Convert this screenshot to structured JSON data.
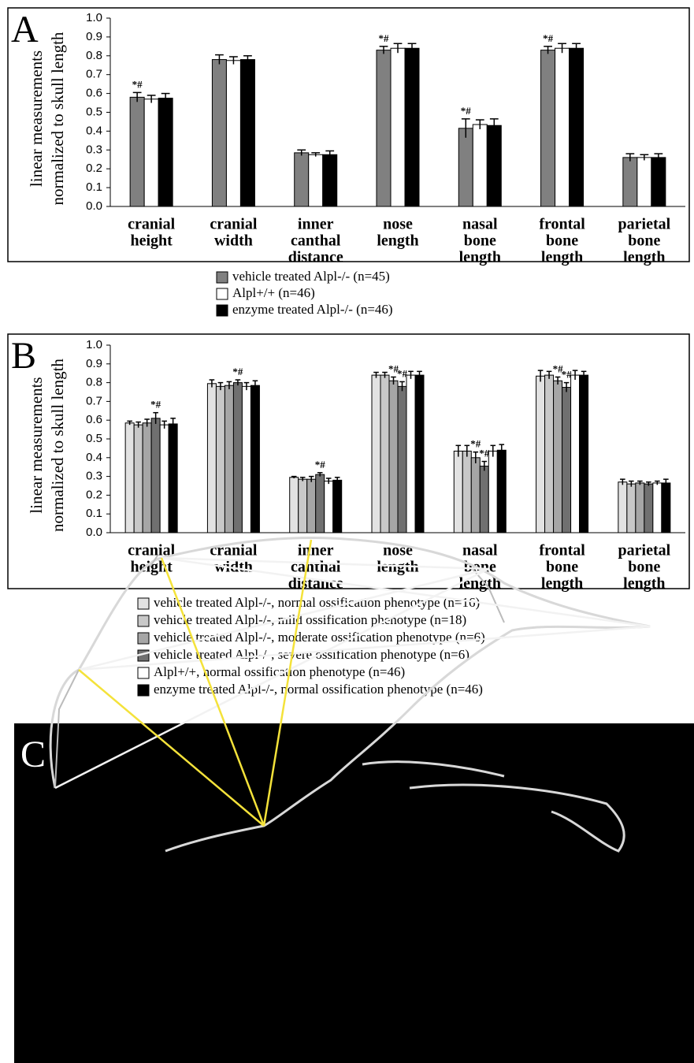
{
  "chart_data": [
    {
      "type": "bar",
      "panel_label": "A",
      "ylabel": [
        "linear measurements",
        "normalized to skull length"
      ],
      "categories": [
        [
          "cranial",
          "height"
        ],
        [
          "cranial",
          "width"
        ],
        [
          "inner",
          "canthal",
          "distance"
        ],
        [
          "nose",
          "length"
        ],
        [
          "nasal",
          "bone",
          "length"
        ],
        [
          "frontal",
          "bone",
          "length"
        ],
        [
          "parietal",
          "bone",
          "length"
        ]
      ],
      "ylim": [
        0,
        1
      ],
      "yticks": [
        {
          "value": 0,
          "label": "0.0"
        },
        0.1,
        0.2,
        0.3,
        0.4,
        0.5,
        0.6,
        0.7,
        0.8,
        0.9,
        {
          "value": 1,
          "label": "1.0"
        }
      ],
      "series": [
        {
          "name": "vehicle treated Alpl-/- (n=45)",
          "color": "#808080",
          "values": [
            0.58,
            0.78,
            0.285,
            0.83,
            0.415,
            0.83,
            0.26
          ],
          "errors": [
            0.025,
            0.025,
            0.015,
            0.02,
            0.05,
            0.02,
            0.02
          ],
          "annotations": [
            "*#",
            null,
            null,
            "*#",
            "*#",
            "*#",
            null
          ]
        },
        {
          "name": "Alpl+/+ (n=46)",
          "color": "#ffffff",
          "values": [
            0.57,
            0.775,
            0.275,
            0.84,
            0.435,
            0.84,
            0.26
          ],
          "errors": [
            0.02,
            0.02,
            0.01,
            0.025,
            0.025,
            0.025,
            0.015
          ]
        },
        {
          "name": "enzyme treated Alpl-/-  (n=46)",
          "color": "#000000",
          "values": [
            0.575,
            0.78,
            0.275,
            0.84,
            0.43,
            0.84,
            0.26
          ],
          "errors": [
            0.025,
            0.02,
            0.02,
            0.025,
            0.035,
            0.025,
            0.02
          ]
        }
      ]
    },
    {
      "type": "bar",
      "panel_label": "B",
      "ylabel": [
        "linear measurements",
        "normalized to skull length"
      ],
      "categories": [
        [
          "cranial",
          "height"
        ],
        [
          "cranial",
          "width"
        ],
        [
          "inner",
          "canthal",
          "distance"
        ],
        [
          "nose",
          "length"
        ],
        [
          "nasal",
          "bone",
          "length"
        ],
        [
          "frontal",
          "bone",
          "length"
        ],
        [
          "parietal",
          "bone",
          "length"
        ]
      ],
      "ylim": [
        0,
        1
      ],
      "yticks": [
        {
          "value": 0,
          "label": "0.0"
        },
        0.1,
        0.2,
        0.3,
        0.4,
        0.5,
        0.6,
        0.7,
        0.8,
        0.9,
        {
          "value": 1,
          "label": "1.0"
        }
      ],
      "series": [
        {
          "name": "vehicle treated Alpl-/-, normal ossification phenotype (n=16)",
          "color": "#e2e2e2",
          "values": [
            0.585,
            0.795,
            0.295,
            0.84,
            0.435,
            0.835,
            0.27
          ],
          "errors": [
            0.01,
            0.02,
            0.005,
            0.015,
            0.03,
            0.03,
            0.015
          ]
        },
        {
          "name": "vehicle treated Alpl-/-, mild ossification phenotype (n=18)",
          "color": "#c8c8c8",
          "values": [
            0.575,
            0.78,
            0.285,
            0.84,
            0.435,
            0.84,
            0.26
          ],
          "errors": [
            0.015,
            0.02,
            0.01,
            0.015,
            0.03,
            0.02,
            0.015
          ]
        },
        {
          "name": "vehicle treated Alpl-/-, moderate ossification phenotype (n=6)",
          "color": "#a6a6a6",
          "values": [
            0.585,
            0.785,
            0.285,
            0.81,
            0.4,
            0.81,
            0.265
          ],
          "errors": [
            0.02,
            0.02,
            0.015,
            0.02,
            0.03,
            0.02,
            0.01
          ],
          "annotations": [
            null,
            null,
            null,
            "*#",
            "*#",
            "*#",
            null
          ]
        },
        {
          "name": "vehicle treated Alpl-/-, severe ossification phenotype (n=6)",
          "color": "#707070",
          "values": [
            0.61,
            0.8,
            0.31,
            0.78,
            0.355,
            0.775,
            0.26
          ],
          "errors": [
            0.03,
            0.015,
            0.01,
            0.025,
            0.025,
            0.025,
            0.01
          ],
          "annotations": [
            "*#",
            "*#",
            "*#",
            "*#",
            "*#",
            "*#",
            null
          ]
        },
        {
          "name": "Alpl+/+, normal ossification phenotype (n=46)",
          "color": "#ffffff",
          "values": [
            0.575,
            0.78,
            0.275,
            0.84,
            0.435,
            0.84,
            0.265
          ],
          "errors": [
            0.02,
            0.02,
            0.015,
            0.02,
            0.03,
            0.025,
            0.01
          ]
        },
        {
          "name": "enzyme treated Alpl-/-, normal ossification phenotype (n=46)",
          "color": "#000000",
          "values": [
            0.58,
            0.785,
            0.28,
            0.84,
            0.44,
            0.84,
            0.265
          ],
          "errors": [
            0.03,
            0.025,
            0.015,
            0.02,
            0.03,
            0.02,
            0.02
          ]
        }
      ]
    }
  ],
  "image_panel": {
    "label": "C"
  }
}
